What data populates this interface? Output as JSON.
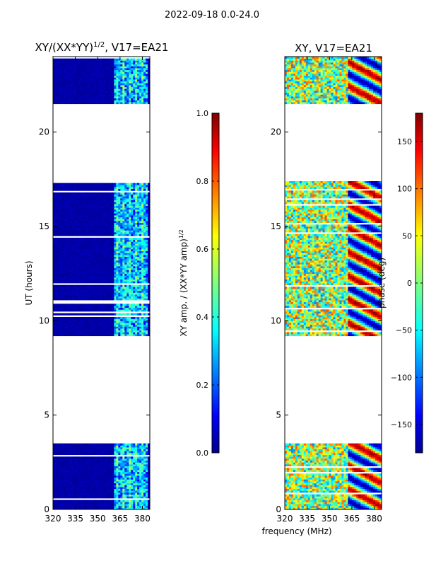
{
  "figure_title": "2022-09-18 0.0-24.0",
  "chart_data": [
    {
      "type": "heatmap",
      "title": "XY/(XX*YY)",
      "title_superscript": "1/2",
      "title_suffix": ", V17=EA21",
      "xlabel": "frequency (MHz)",
      "ylabel": "UT (hours)",
      "xlim": [
        320,
        385
      ],
      "ylim": [
        0,
        24
      ],
      "x_ticks": [
        320,
        335,
        350,
        365,
        380
      ],
      "y_ticks": [
        0,
        5,
        10,
        15,
        20
      ],
      "data_gaps_hours": [
        [
          3.5,
          9.2
        ],
        [
          17.4,
          21.5
        ]
      ],
      "colorbar": {
        "label": "XY amp. / (XX*YY amp)",
        "label_superscript": "1/2",
        "range": [
          0.0,
          1.0
        ],
        "ticks": [
          "0.0",
          "0.2",
          "0.4",
          "0.6",
          "0.8",
          "1.0"
        ]
      }
    },
    {
      "type": "heatmap",
      "title": "XY, V17=EA21",
      "xlabel": "frequency (MHz)",
      "xlim": [
        320,
        385
      ],
      "ylim": [
        0,
        24
      ],
      "x_ticks": [
        320,
        335,
        350,
        365,
        380
      ],
      "y_ticks": [
        0,
        5,
        10,
        15,
        20
      ],
      "data_gaps_hours": [
        [
          3.5,
          9.2
        ],
        [
          17.4,
          21.5
        ]
      ],
      "colorbar": {
        "label": "phase (deg)",
        "range": [
          -180,
          180
        ],
        "ticks": [
          "−150",
          "−100",
          "−50",
          "0",
          "50",
          "100",
          "150"
        ]
      }
    }
  ],
  "shared_xlabel": "frequency (MHz)"
}
